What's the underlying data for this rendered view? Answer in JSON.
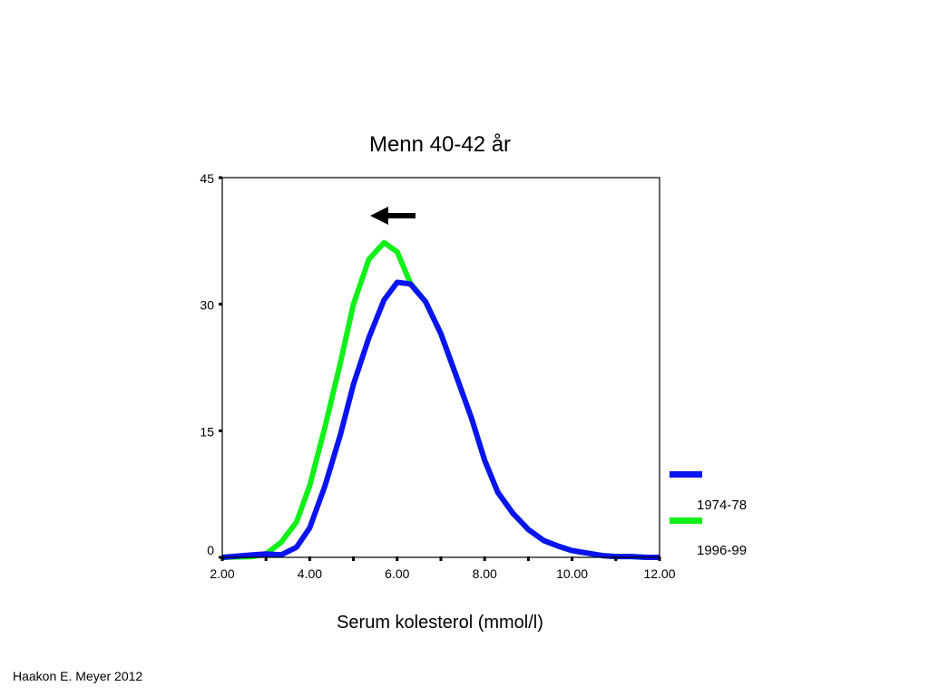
{
  "footer": {
    "credit": "Haakon E. Meyer 2012"
  },
  "colors": {
    "series_1974": "#0a14f0",
    "series_1996": "#12f01a",
    "axis": "#000000"
  },
  "chart_data": {
    "type": "line",
    "title": "Menn 40-42 år",
    "xlabel": "Serum kolesterol  (mmol/l)",
    "ylabel": "",
    "xlim": [
      2.0,
      12.0
    ],
    "ylim": [
      0,
      45
    ],
    "xticks": [
      "2.00",
      "4.00",
      "6.00",
      "8.00",
      "10.00",
      "12.00"
    ],
    "xtick_values": [
      2,
      4,
      6,
      8,
      10,
      12
    ],
    "yticks": [
      "0",
      "15",
      "30",
      "45"
    ],
    "ytick_values": [
      0,
      15,
      30,
      45
    ],
    "grid": false,
    "legend_position": "right",
    "annotation": "arrow pointing left",
    "series": [
      {
        "name": "1974-78",
        "color": "#0a14f0",
        "x": [
          2.0,
          2.7,
          3.0,
          3.35,
          3.7,
          4.0,
          4.35,
          4.7,
          5.0,
          5.35,
          5.7,
          6.0,
          6.3,
          6.65,
          7.0,
          7.35,
          7.7,
          8.0,
          8.3,
          8.65,
          9.0,
          9.35,
          9.7,
          10.0,
          10.35,
          10.7,
          11.0,
          11.35,
          11.7,
          12.0
        ],
        "y": [
          0,
          0.3,
          0.4,
          0.3,
          1.2,
          3.5,
          8.5,
          14.5,
          20.5,
          26.0,
          30.5,
          32.6,
          32.4,
          30.3,
          26.5,
          21.5,
          16.5,
          11.5,
          7.7,
          5.2,
          3.3,
          2.0,
          1.3,
          0.8,
          0.5,
          0.2,
          0.1,
          0.1,
          0,
          0
        ]
      },
      {
        "name": "1996-99",
        "color": "#12f01a",
        "x": [
          2.0,
          2.7,
          3.0,
          3.35,
          3.7,
          4.0,
          4.35,
          4.7,
          5.0,
          5.35,
          5.7,
          6.0,
          6.3,
          6.65,
          7.0,
          7.35,
          7.7,
          8.0,
          8.3,
          8.65,
          9.0,
          9.35,
          9.7,
          10.0,
          10.35,
          10.7,
          11.0,
          11.35,
          11.7,
          12.0
        ],
        "y": [
          0,
          0.1,
          0.4,
          1.8,
          4.2,
          8.5,
          15.5,
          23.0,
          30.0,
          35.3,
          37.3,
          36.2,
          32.5,
          30.3,
          26.5,
          21.5,
          16.5,
          11.5,
          7.7,
          5.2,
          3.3,
          2.0,
          1.3,
          0.8,
          0.5,
          0.2,
          0.1,
          0.1,
          0,
          0
        ]
      }
    ]
  }
}
